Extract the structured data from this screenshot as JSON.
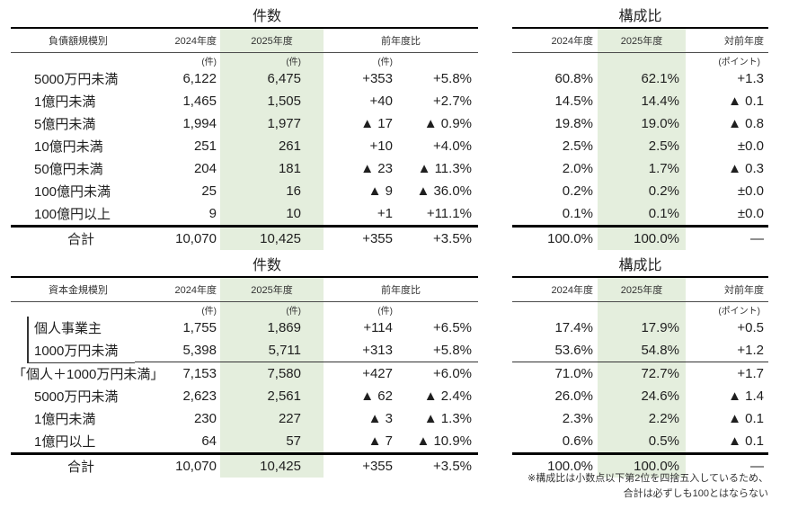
{
  "colors": {
    "highlight": "#e4eedd"
  },
  "tables": {
    "debt_count": {
      "title": "件数",
      "col_label": "負債額規模別",
      "col_2024": "2024年度",
      "col_2025": "2025年度",
      "col_yoy": "前年度比",
      "unit": "(件)",
      "rows": [
        {
          "label": "5000万円未満",
          "v2024": "6,122",
          "v2025": "6,475",
          "diff": "+353",
          "pct": "+5.8%"
        },
        {
          "label": "1億円未満",
          "v2024": "1,465",
          "v2025": "1,505",
          "diff": "+40",
          "pct": "+2.7%"
        },
        {
          "label": "5億円未満",
          "v2024": "1,994",
          "v2025": "1,977",
          "diff": "▲ 17",
          "pct": "▲ 0.9%"
        },
        {
          "label": "10億円未満",
          "v2024": "251",
          "v2025": "261",
          "diff": "+10",
          "pct": "+4.0%"
        },
        {
          "label": "50億円未満",
          "v2024": "204",
          "v2025": "181",
          "diff": "▲ 23",
          "pct": "▲ 11.3%"
        },
        {
          "label": "100億円未満",
          "v2024": "25",
          "v2025": "16",
          "diff": "▲ 9",
          "pct": "▲ 36.0%"
        },
        {
          "label": "100億円以上",
          "v2024": "9",
          "v2025": "10",
          "diff": "+1",
          "pct": "+11.1%"
        }
      ],
      "total": {
        "label": "合計",
        "v2024": "10,070",
        "v2025": "10,425",
        "diff": "+355",
        "pct": "+3.5%"
      }
    },
    "debt_share": {
      "title": "構成比",
      "col_2024": "2024年度",
      "col_2025": "2025年度",
      "col_yoy": "対前年度",
      "unit": "(ポイント)",
      "rows": [
        {
          "v2024": "60.8%",
          "v2025": "62.1%",
          "diff": "+1.3"
        },
        {
          "v2024": "14.5%",
          "v2025": "14.4%",
          "diff": "▲ 0.1"
        },
        {
          "v2024": "19.8%",
          "v2025": "19.0%",
          "diff": "▲ 0.8"
        },
        {
          "v2024": "2.5%",
          "v2025": "2.5%",
          "diff": "±0.0"
        },
        {
          "v2024": "2.0%",
          "v2025": "1.7%",
          "diff": "▲ 0.3"
        },
        {
          "v2024": "0.2%",
          "v2025": "0.2%",
          "diff": "±0.0"
        },
        {
          "v2024": "0.1%",
          "v2025": "0.1%",
          "diff": "±0.0"
        }
      ],
      "total": {
        "v2024": "100.0%",
        "v2025": "100.0%",
        "diff": "—"
      }
    },
    "capital_count": {
      "title": "件数",
      "col_label": "資本金規模別",
      "col_2024": "2024年度",
      "col_2025": "2025年度",
      "col_yoy": "前年度比",
      "unit": "(件)",
      "rows": [
        {
          "label": "個人事業主",
          "v2024": "1,755",
          "v2025": "1,869",
          "diff": "+114",
          "pct": "+6.5%",
          "group": true
        },
        {
          "label": "1000万円未満",
          "v2024": "5,398",
          "v2025": "5,711",
          "diff": "+313",
          "pct": "+5.8%",
          "group": true
        },
        {
          "label": "「個人＋1000万円未満」",
          "v2024": "7,153",
          "v2025": "7,580",
          "diff": "+427",
          "pct": "+6.0%",
          "subtotal": true
        },
        {
          "label": "5000万円未満",
          "v2024": "2,623",
          "v2025": "2,561",
          "diff": "▲ 62",
          "pct": "▲ 2.4%"
        },
        {
          "label": "1億円未満",
          "v2024": "230",
          "v2025": "227",
          "diff": "▲ 3",
          "pct": "▲ 1.3%"
        },
        {
          "label": "1億円以上",
          "v2024": "64",
          "v2025": "57",
          "diff": "▲ 7",
          "pct": "▲ 10.9%"
        }
      ],
      "total": {
        "label": "合計",
        "v2024": "10,070",
        "v2025": "10,425",
        "diff": "+355",
        "pct": "+3.5%"
      }
    },
    "capital_share": {
      "title": "構成比",
      "col_2024": "2024年度",
      "col_2025": "2025年度",
      "col_yoy": "対前年度",
      "unit": "(ポイント)",
      "rows": [
        {
          "v2024": "17.4%",
          "v2025": "17.9%",
          "diff": "+0.5"
        },
        {
          "v2024": "53.6%",
          "v2025": "54.8%",
          "diff": "+1.2"
        },
        {
          "v2024": "71.0%",
          "v2025": "72.7%",
          "diff": "+1.7",
          "subtotal": true
        },
        {
          "v2024": "26.0%",
          "v2025": "24.6%",
          "diff": "▲ 1.4"
        },
        {
          "v2024": "2.3%",
          "v2025": "2.2%",
          "diff": "▲ 0.1"
        },
        {
          "v2024": "0.6%",
          "v2025": "0.5%",
          "diff": "▲ 0.1"
        }
      ],
      "total": {
        "v2024": "100.0%",
        "v2025": "100.0%",
        "diff": "—"
      }
    }
  },
  "footnote": {
    "line1": "※構成比は小数点以下第2位を四捨五入しているため、",
    "line2": "合計は必ずしも100とはならない"
  }
}
